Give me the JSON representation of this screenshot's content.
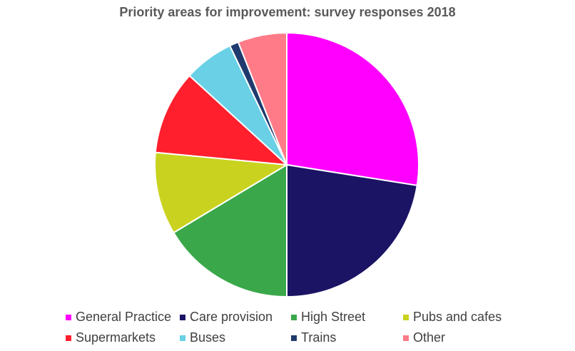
{
  "chart_data": {
    "type": "pie",
    "title": "Priority areas for improvement: survey responses 2018",
    "legend_position": "bottom",
    "unit": "percent (estimated)",
    "slices": [
      {
        "name": "General Practice",
        "value": 27.5,
        "color": "#FF00FF"
      },
      {
        "name": "Care provision",
        "value": 22.5,
        "color": "#1B1464"
      },
      {
        "name": "High Street",
        "value": 16.4,
        "color": "#3AA84A"
      },
      {
        "name": "Pubs and cafes",
        "value": 10.1,
        "color": "#C9D31F"
      },
      {
        "name": "Supermarkets",
        "value": 10.3,
        "color": "#FF1F2D"
      },
      {
        "name": "Buses",
        "value": 6.1,
        "color": "#69D0E6"
      },
      {
        "name": "Trains",
        "value": 1.1,
        "color": "#1F3A6E"
      },
      {
        "name": "Other",
        "value": 6.0,
        "color": "#FF7B87"
      }
    ]
  }
}
